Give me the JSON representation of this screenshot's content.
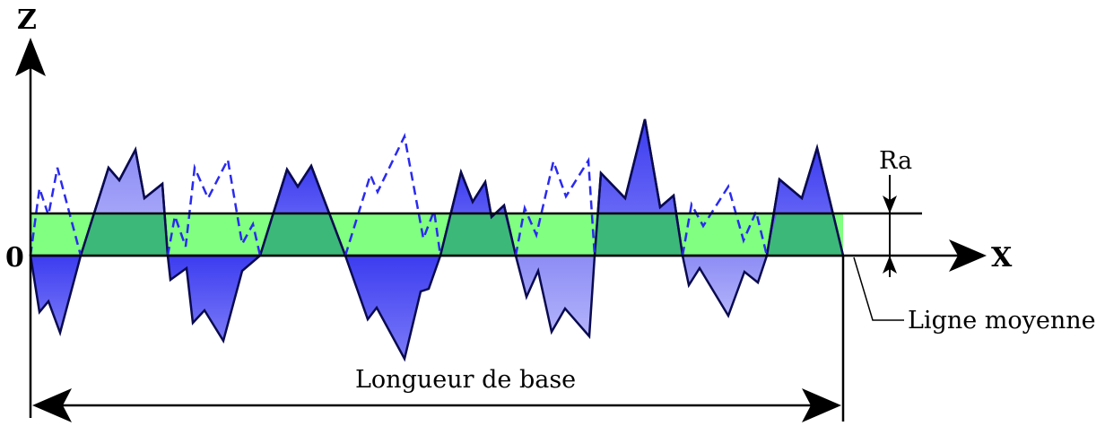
{
  "labels": {
    "z_axis": "Z",
    "x_axis": "X",
    "origin": "0",
    "ra": "Ra",
    "mean_line": "Ligne moyenne",
    "base_length": "Longueur de base"
  },
  "colors": {
    "band": "#80ff80",
    "band_overlap": "#3cb878",
    "fill_dark": "#5a5af5",
    "fill_light": "#a4a4f8",
    "dashed": "#2a2af0",
    "axis": "#000000"
  }
}
